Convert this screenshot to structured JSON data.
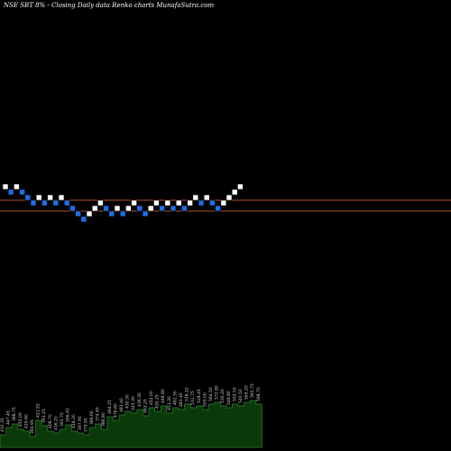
{
  "header": {
    "title": "NSE SBT 8% -   Closing Daily data  Renko  charts MunafaSutra.com"
  },
  "colors": {
    "background": "#000000",
    "up_brick": "#ffffff",
    "down_brick": "#1f6fe5",
    "reference_line": "#b0552a",
    "volume_fill": "#0a3a0a",
    "volume_stroke": "#2f7f2f",
    "volume_label": "#cfcfcf"
  },
  "chart_data": {
    "type": "renko",
    "reference_lines": [
      222,
      234
    ],
    "bricks": [
      {
        "dir": "up",
        "level": 0
      },
      {
        "dir": "down",
        "level": -1
      },
      {
        "dir": "up",
        "level": 0
      },
      {
        "dir": "down",
        "level": -1
      },
      {
        "dir": "down",
        "level": -2
      },
      {
        "dir": "down",
        "level": -3
      },
      {
        "dir": "up",
        "level": -2
      },
      {
        "dir": "down",
        "level": -3
      },
      {
        "dir": "up",
        "level": -2
      },
      {
        "dir": "down",
        "level": -3
      },
      {
        "dir": "up",
        "level": -2
      },
      {
        "dir": "down",
        "level": -3
      },
      {
        "dir": "down",
        "level": -4
      },
      {
        "dir": "down",
        "level": -5
      },
      {
        "dir": "down",
        "level": -6
      },
      {
        "dir": "up",
        "level": -5
      },
      {
        "dir": "up",
        "level": -4
      },
      {
        "dir": "up",
        "level": -3
      },
      {
        "dir": "down",
        "level": -4
      },
      {
        "dir": "down",
        "level": -5
      },
      {
        "dir": "up",
        "level": -4
      },
      {
        "dir": "down",
        "level": -5
      },
      {
        "dir": "up",
        "level": -4
      },
      {
        "dir": "up",
        "level": -3
      },
      {
        "dir": "down",
        "level": -4
      },
      {
        "dir": "down",
        "level": -5
      },
      {
        "dir": "up",
        "level": -4
      },
      {
        "dir": "up",
        "level": -3
      },
      {
        "dir": "down",
        "level": -4
      },
      {
        "dir": "up",
        "level": -3
      },
      {
        "dir": "down",
        "level": -4
      },
      {
        "dir": "up",
        "level": -3
      },
      {
        "dir": "down",
        "level": -4
      },
      {
        "dir": "up",
        "level": -3
      },
      {
        "dir": "up",
        "level": -2
      },
      {
        "dir": "down",
        "level": -3
      },
      {
        "dir": "up",
        "level": -2
      },
      {
        "dir": "down",
        "level": -3
      },
      {
        "dir": "down",
        "level": -4
      },
      {
        "dir": "up",
        "level": -3
      },
      {
        "dir": "up",
        "level": -2
      },
      {
        "dir": "up",
        "level": -1
      },
      {
        "dir": "up",
        "level": 0
      }
    ],
    "volume_bars": [
      14,
      22,
      26,
      20,
      18,
      12,
      30,
      24,
      18,
      16,
      20,
      25,
      18,
      16,
      14,
      22,
      26,
      20,
      34,
      30,
      36,
      40,
      38,
      42,
      35,
      44,
      40,
      46,
      38,
      44,
      42,
      48,
      44,
      46,
      42,
      48,
      50,
      46,
      44,
      48,
      46,
      50,
      52,
      48
    ],
    "volume_labels": [
      "432.35",
      "447.45",
      "386.75",
      "455.00",
      "429.60",
      "384.95",
      "421.55",
      "391.25",
      "406.70",
      "416.20",
      "392.70",
      "396.45",
      "418.20",
      "397.95",
      "379.95",
      "386.60",
      "374.45",
      "386.80",
      "464.25",
      "476.60",
      "483.40",
      "430.50",
      "445.30",
      "436.30",
      "463.25",
      "452.00",
      "430.25",
      "448.80",
      "451.30",
      "482.50",
      "483.40",
      "516.10",
      "512.75",
      "528.45",
      "555.00",
      "564.50",
      "572.80",
      "530.20",
      "548.80",
      "555.55",
      "540.50",
      "565.20",
      "561.75",
      "598.70"
    ]
  }
}
